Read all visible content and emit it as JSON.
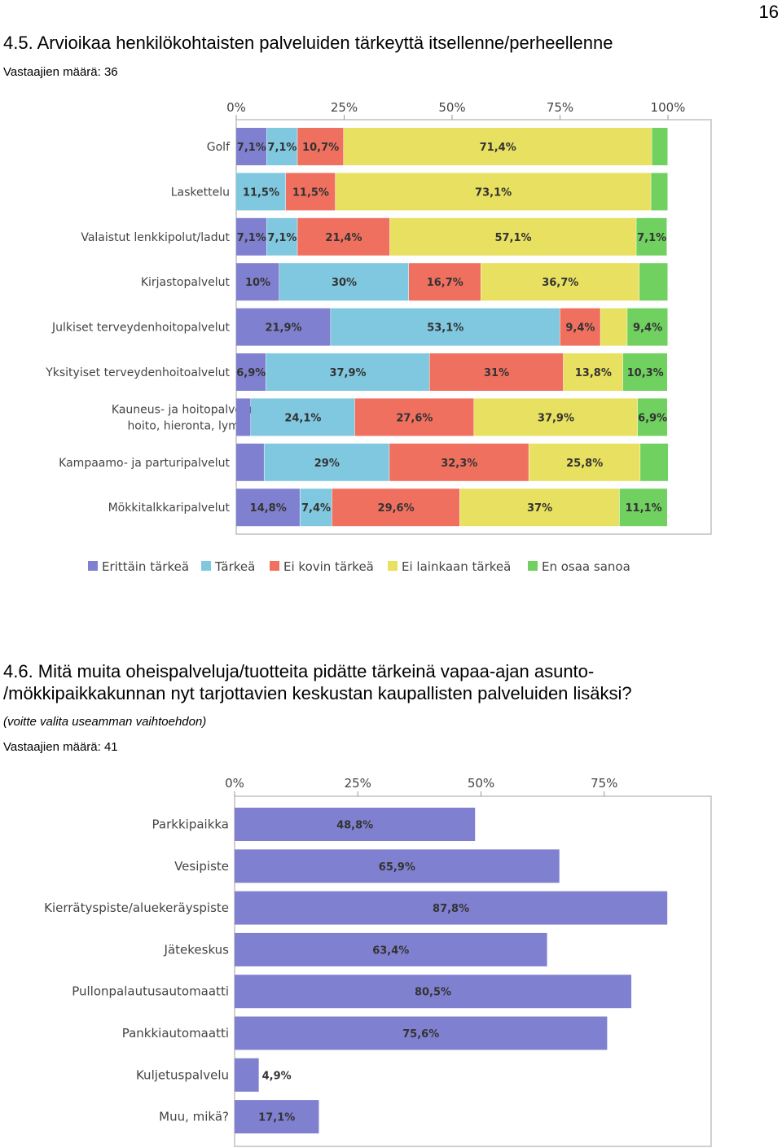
{
  "page_number": "16",
  "section1": {
    "title": "4.5. Arvioikaa henkilökohtaisten palveluiden tärkeyttä itsellenne/perheellenne",
    "respondents": "Vastaajien määrä: 36"
  },
  "section2": {
    "title_line1": "4.6. Mitä muita oheispalveluja/tuotteita pidätte tärkeinä vapaa-ajan asunto-",
    "title_line2": "/mökkipaikkakunnan nyt tarjottavien keskustan kaupallisten palveluiden lisäksi?",
    "instruction": "(voitte valita useamman vaihtoehdon)",
    "respondents": "Vastaajien määrä: 41"
  },
  "colors": {
    "series": [
      "#8080d0",
      "#80c8e0",
      "#f07060",
      "#e8e060",
      "#70d060"
    ],
    "bar2": "#8080d0",
    "frame": "#c0c0c0"
  },
  "chart_data": [
    {
      "type": "bar",
      "orientation": "horizontal",
      "stacked": true,
      "xlim": [
        0,
        100
      ],
      "x_ticks": [
        "0%",
        "25%",
        "50%",
        "75%",
        "100%"
      ],
      "legend_position": "bottom",
      "categories": [
        [
          "Golf"
        ],
        [
          "Laskettelu"
        ],
        [
          "Valaistut lenkkipolut/ladut"
        ],
        [
          "Kirjastopalvelut"
        ],
        [
          "Julkiset terveydenhoitopalvelut"
        ],
        [
          "Yksityiset terveydenhoitoalvelut"
        ],
        [
          "Kauneus- ja hoitopalvelut (jalkojen",
          "hoito, hieronta, lymfa ym.)"
        ],
        [
          "Kampaamo- ja parturipalvelut"
        ],
        [
          "Mökkitalkkaripalvelut"
        ]
      ],
      "series": [
        {
          "name": "Erittäin tärkeä",
          "values": [
            7.1,
            0,
            7.1,
            10,
            21.9,
            6.9,
            3.4,
            6.5,
            14.8
          ],
          "labels": [
            "7,1%",
            "",
            "7,1%",
            "10%",
            "21,9%",
            "6,9%",
            "",
            "",
            "14,8%"
          ]
        },
        {
          "name": "Tärkeä",
          "values": [
            7.1,
            11.5,
            7.1,
            30,
            53.1,
            37.9,
            24.1,
            29,
            7.4
          ],
          "labels": [
            "7,1%",
            "11,5%",
            "7,1%",
            "30%",
            "53,1%",
            "37,9%",
            "24,1%",
            "29%",
            "7,4%"
          ]
        },
        {
          "name": "Ei kovin tärkeä",
          "values": [
            10.7,
            11.5,
            21.4,
            16.7,
            9.4,
            31,
            27.6,
            32.3,
            29.6
          ],
          "labels": [
            "10,7%",
            "11,5%",
            "21,4%",
            "16,7%",
            "9,4%",
            "31%",
            "27,6%",
            "32,3%",
            "29,6%"
          ]
        },
        {
          "name": "Ei lainkaan tärkeä",
          "values": [
            71.4,
            73.1,
            57.1,
            36.7,
            6.2,
            13.8,
            37.9,
            25.8,
            37
          ],
          "labels": [
            "71,4%",
            "73,1%",
            "57,1%",
            "36,7%",
            "",
            "13,8%",
            "37,9%",
            "25,8%",
            "37%"
          ]
        },
        {
          "name": "En osaa sanoa",
          "values": [
            3.7,
            3.9,
            7.1,
            6.6,
            9.4,
            10.3,
            6.9,
            6.5,
            11.1
          ],
          "labels": [
            "",
            "",
            "7,1%",
            "",
            "9,4%",
            "10,3%",
            "6,9%",
            "",
            "11,1%"
          ]
        }
      ]
    },
    {
      "type": "bar",
      "orientation": "horizontal",
      "xlim": [
        0,
        100
      ],
      "x_ticks": [
        "0%",
        "25%",
        "50%",
        "75%"
      ],
      "categories": [
        "Parkkipaikka",
        "Vesipiste",
        "Kierrätyspiste/aluekeräyspiste",
        "Jätekeskus",
        "Pullonpalautusautomaatti",
        "Pankkiautomaatti",
        "Kuljetuspalvelu",
        "Muu, mikä?"
      ],
      "values": [
        48.8,
        65.9,
        87.8,
        63.4,
        80.5,
        75.6,
        4.9,
        17.1
      ],
      "labels": [
        "48,8%",
        "65,9%",
        "87,8%",
        "63,4%",
        "80,5%",
        "75,6%",
        "4,9%",
        "17,1%"
      ]
    }
  ]
}
